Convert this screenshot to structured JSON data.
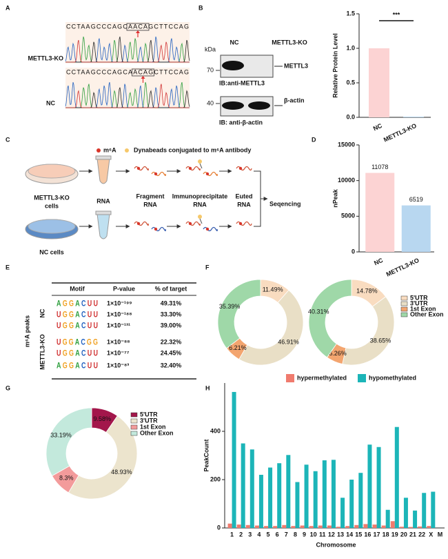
{
  "panels": [
    "A",
    "B",
    "C",
    "D",
    "E",
    "F",
    "G",
    "H"
  ],
  "sanger": {
    "sequence_ko": "CCTAAGCCCAGCAACAGCTTCCAG",
    "sequence_nc": "CCTAAGCCCAGCAACAGCTTCCAG",
    "labels": [
      "METTL3-KO",
      "NC"
    ]
  },
  "blot": {
    "kda": "kDa",
    "lanes": [
      "NC",
      "METTL3-KO"
    ],
    "markers": [
      "70",
      "40"
    ],
    "bands": [
      "METTL3",
      "β-actin"
    ],
    "ib": [
      "IB:anti-METTL3",
      "IB: anti-β-actin"
    ]
  },
  "workflow": {
    "legend": [
      "m⁶A",
      "Dynabeads conjugated to m⁶A antibody"
    ],
    "rows": [
      [
        "METTL3-KO",
        "cells"
      ],
      [
        "NC cells"
      ]
    ],
    "steps": [
      [
        "RNA"
      ],
      [
        "Fragment",
        "RNA"
      ],
      [
        "Immunoprecipitate",
        "RNA"
      ],
      [
        "Euted",
        "RNA"
      ]
    ],
    "output": "Seqencing"
  },
  "motif_table": {
    "headers": [
      "Motif",
      "P-value",
      "% of target"
    ],
    "group": "m⁶A peaks",
    "subgroups": [
      "NC",
      "METTL3-KO"
    ],
    "rows": [
      [
        "AGGACUU",
        "1×10⁻¹⁹⁹",
        "49.31%"
      ],
      [
        "UGGACUU",
        "1×10⁻¹⁸⁸",
        "33.30%"
      ],
      [
        "UGGACUU",
        "1×10⁻¹³¹",
        "39.00%"
      ],
      [
        "UGGACGG",
        "1×10⁻⁸⁸",
        "22.32%"
      ],
      [
        "UGGACUU",
        "1×10⁻⁷⁷",
        "24.45%"
      ],
      [
        "AGGACUU",
        "1×10⁻⁸³",
        "32.40%"
      ]
    ]
  },
  "chart_data": [
    {
      "type": "bar",
      "ylabel": "Relative Protein Level",
      "categories": [
        "NC",
        "METTL3-KO"
      ],
      "values": [
        1.0,
        0.01
      ],
      "colors": [
        "#fcd3d3",
        "#b8d7f0"
      ],
      "ylim": [
        0,
        1.5
      ],
      "yticks": [
        {
          "value": 0,
          "label": "0.0"
        },
        {
          "value": 0.5,
          "label": "0.5"
        },
        {
          "value": 1,
          "label": "1.0"
        },
        {
          "value": 1.5,
          "label": "1.5"
        }
      ],
      "annotation": "***"
    },
    {
      "type": "bar",
      "ylabel": "nPeak",
      "categories": [
        "NC",
        "METTL3-KO"
      ],
      "values": [
        11078,
        6519
      ],
      "colors": [
        "#fcd3d3",
        "#b8d7f0"
      ],
      "ylim": [
        0,
        15000
      ],
      "yticks": [
        0,
        5000,
        10000,
        15000
      ],
      "data_labels": true
    },
    {
      "type": "donut",
      "categories": [
        "5'UTR",
        "3'UTR",
        "1st Exon",
        "Other Exon"
      ],
      "colors": [
        "#f9dcc0",
        "#e9dfc6",
        "#f3a56f",
        "#9fd8a8"
      ],
      "series": [
        {
          "values": [
            11.49,
            46.91,
            6.21,
            35.39
          ],
          "value_labels": [
            "11.49%",
            "46.91%",
            "6.21%",
            "35.39%"
          ]
        },
        {
          "values": [
            14.78,
            38.65,
            6.26,
            40.31
          ],
          "value_labels": [
            "14.78%",
            "38.65%",
            "6.26%",
            "40.31%"
          ]
        }
      ]
    },
    {
      "type": "donut",
      "categories": [
        "5'UTR",
        "3'UTR",
        "1st Exon",
        "Other Exon"
      ],
      "colors": [
        "#a3174b",
        "#ece4cd",
        "#f39b9b",
        "#c3e9dc"
      ],
      "series": [
        {
          "values": [
            9.58,
            48.93,
            8.3,
            33.19
          ],
          "value_labels": [
            "9.58%",
            "48.93%",
            "8.3%",
            "33.19%"
          ]
        }
      ]
    },
    {
      "type": "bar",
      "xlabel": "Chromosome",
      "ylabel": "PeakCount",
      "categories": [
        "1",
        "2",
        "3",
        "4",
        "5",
        "6",
        "7",
        "8",
        "9",
        "10",
        "11",
        "12",
        "13",
        "14",
        "15",
        "16",
        "17",
        "18",
        "19",
        "20",
        "21",
        "22",
        "X",
        "M"
      ],
      "series": [
        {
          "name": "hypermethylated",
          "color": "#f07b6e",
          "values": [
            18,
            14,
            12,
            10,
            8,
            8,
            12,
            8,
            10,
            8,
            10,
            10,
            5,
            8,
            12,
            16,
            14,
            10,
            28,
            5,
            4,
            6,
            8,
            0
          ]
        },
        {
          "name": "hypomethylated",
          "color": "#1cb5b8",
          "values": [
            563,
            350,
            325,
            220,
            250,
            268,
            302,
            190,
            262,
            235,
            280,
            282,
            125,
            200,
            228,
            345,
            335,
            75,
            418,
            125,
            72,
            145,
            150,
            0
          ]
        }
      ],
      "ylim": [
        0,
        600
      ],
      "yticks": [
        0,
        200,
        400
      ]
    }
  ]
}
